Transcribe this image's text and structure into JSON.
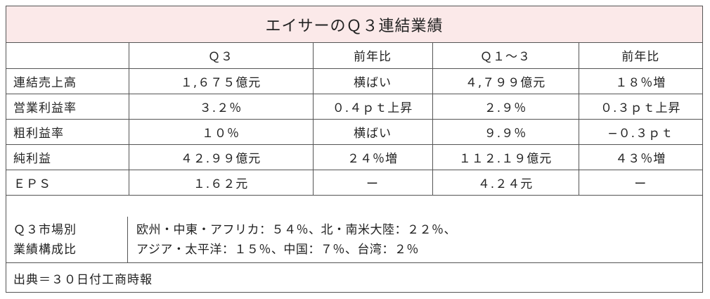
{
  "title": "エイサーのＱ３連結業績",
  "columns": [
    "",
    "Ｑ３",
    "前年比",
    "Ｑ１～３",
    "前年比"
  ],
  "rows": [
    {
      "label": "連結売上高",
      "q3": "１,６７５億元",
      "q3_yoy": "横ばい",
      "q1_3": "４,７９９億元",
      "q1_3_yoy": "１８％増"
    },
    {
      "label": "営業利益率",
      "q3": "３.２％",
      "q3_yoy": "０.４ｐｔ上昇",
      "q1_3": "２.９％",
      "q1_3_yoy": "０.３ｐｔ上昇"
    },
    {
      "label": "粗利益率",
      "q3": "１０％",
      "q3_yoy": "横ばい",
      "q1_3": "９.９％",
      "q1_3_yoy": "−０.３ｐｔ"
    },
    {
      "label": "純利益",
      "q3": "４２.９９億元",
      "q3_yoy": "２４％増",
      "q1_3": "１１２.１９億元",
      "q1_3_yoy": "４３％増"
    },
    {
      "label": "ＥＰＳ",
      "q3": "１.６２元",
      "q3_yoy": "ー",
      "q1_3": "４.２４元",
      "q1_3_yoy": "ー"
    }
  ],
  "breakdown": {
    "label_line1": "Ｑ３市場別",
    "label_line2": "業績構成比",
    "line1": "欧州・中東・アフリカ：５４％、北・南米大陸：２２％、",
    "line2": "アジア・太平洋：１５％、中国：７％、台湾：２％"
  },
  "source": "出典＝３０日付工商時報"
}
